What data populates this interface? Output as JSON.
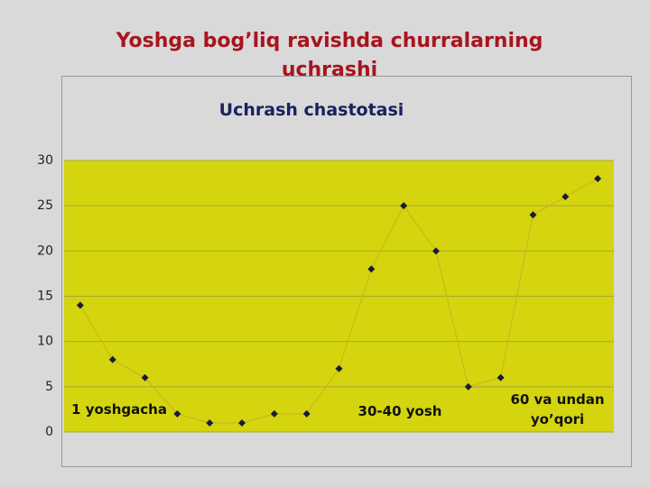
{
  "title": "Yoshga bog’liq ravishda churralarning uchrashi",
  "chart_data": {
    "type": "line",
    "title": "Uchrash chastotasi",
    "categories": [
      null,
      null,
      null,
      null,
      null,
      null,
      null,
      null,
      null,
      null,
      null,
      null,
      null,
      null,
      null,
      null,
      null
    ],
    "values": [
      14,
      8,
      6,
      2,
      1,
      1,
      2,
      2,
      7,
      18,
      25,
      20,
      5,
      6,
      24,
      26,
      28
    ],
    "color": "#c9b81a",
    "marker_color": "#1a1a3a",
    "plot_color": "#d4d40f",
    "ylim": [
      0,
      30
    ],
    "yticks": [
      0,
      5,
      10,
      15,
      20,
      25,
      30
    ],
    "grid": true,
    "annotations": [
      "1 yoshgacha",
      "30-40 yosh",
      "60 va undan yo’qori"
    ]
  }
}
